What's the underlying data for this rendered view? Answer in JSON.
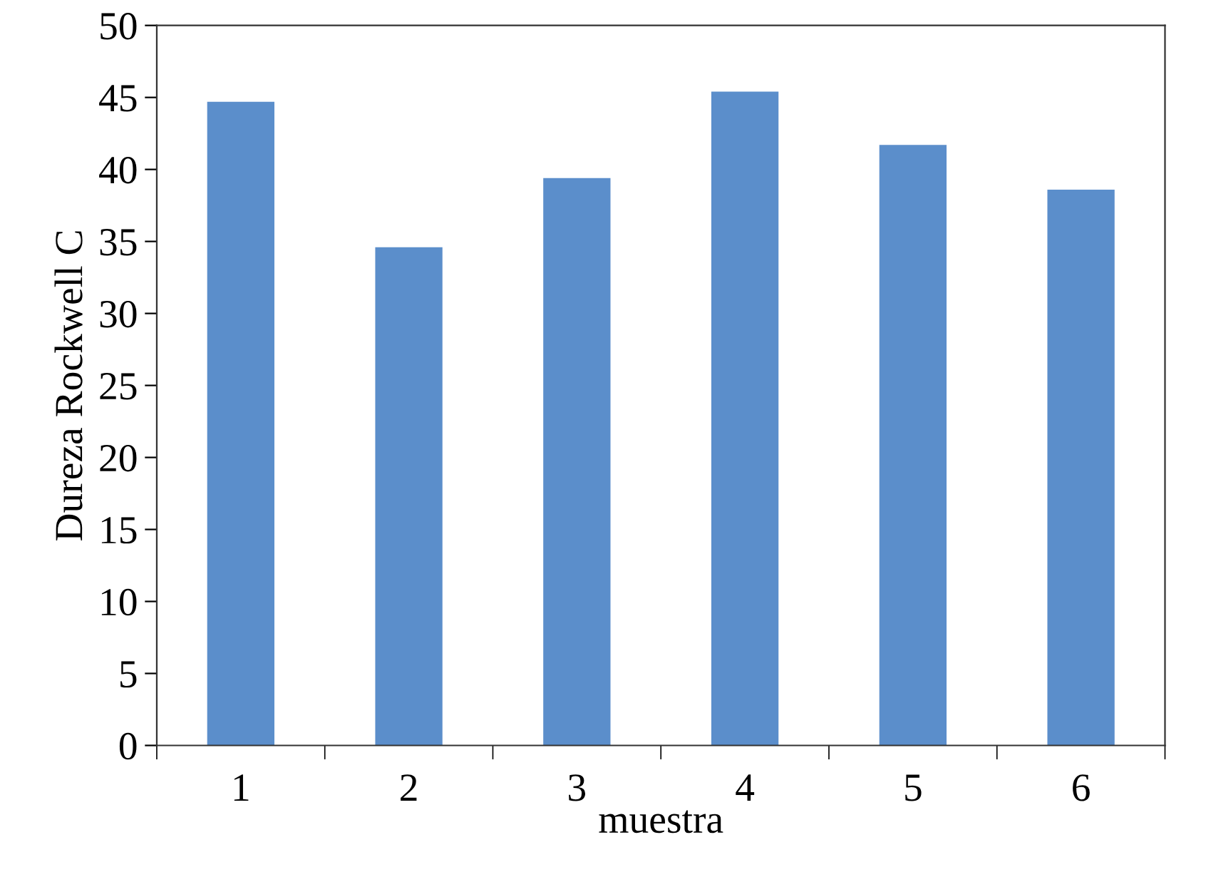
{
  "chart_data": {
    "type": "bar",
    "xlabel": "muestra",
    "ylabel": "Dureza Rockwell C",
    "categories": [
      "1",
      "2",
      "3",
      "4",
      "5",
      "6"
    ],
    "values": [
      44.7,
      34.6,
      39.4,
      45.4,
      41.7,
      38.6
    ],
    "color": "#5b8ecb",
    "ylim": [
      0,
      50
    ],
    "yticks": [
      0,
      5,
      10,
      15,
      20,
      25,
      30,
      35,
      40,
      45,
      50
    ],
    "grid": false
  }
}
